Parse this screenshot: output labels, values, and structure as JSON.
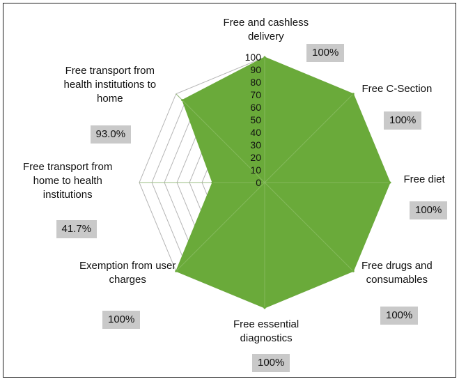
{
  "chart_data": {
    "type": "radar",
    "title": "",
    "rmax": 100,
    "ticks": [
      "100",
      "90",
      "80",
      "70",
      "60",
      "50",
      "40",
      "30",
      "20",
      "10",
      "0"
    ],
    "categories": [
      "Free and cashless\ndelivery",
      "Free C-Section",
      "Free diet",
      "Free drugs and\nconsumables",
      "Free essential\ndiagnostics",
      "Exemption from user\ncharges",
      "Free transport from\nhome to health\ninstitutions",
      "Free transport from\nhealth institutions to\nhome"
    ],
    "values": [
      100,
      100,
      100,
      100,
      100,
      100,
      41.7,
      93.0
    ],
    "value_labels": [
      "100%",
      "100%",
      "100%",
      "100%",
      "100%",
      "100%",
      "41.7%",
      "93.0%"
    ],
    "fill_color": "#6aaa3a",
    "grid": true
  }
}
